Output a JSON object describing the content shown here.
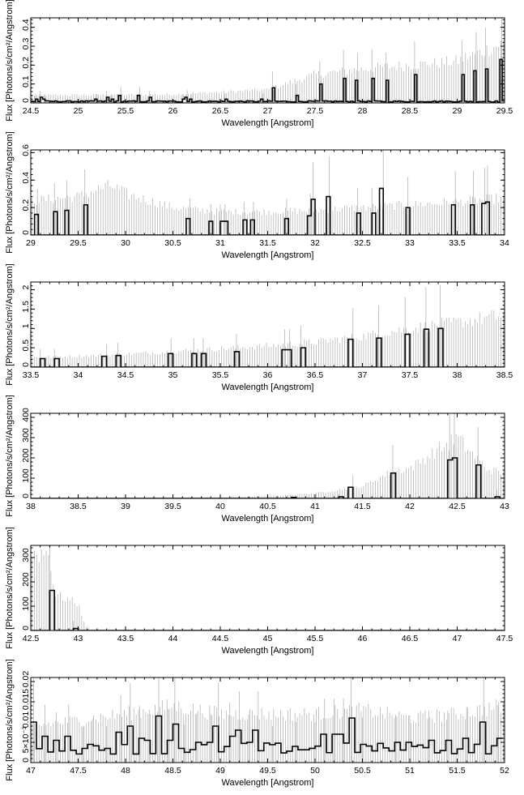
{
  "chart_data": [
    {
      "type": "histogram-step",
      "xlabel": "Wavelength [Angstrom]",
      "ylabel": "Flux [Photons/s/cm²/Angstrom]",
      "xlim": [
        24.5,
        29.5
      ],
      "ylim": [
        0,
        0.45
      ],
      "xticks": [
        24.5,
        25,
        25.5,
        26,
        26.5,
        27,
        27.5,
        28,
        28.5,
        29,
        29.5
      ],
      "xtick_labels": [
        "24.5",
        "25",
        "25.5",
        "26",
        "26.5",
        "27",
        "27.5",
        "28",
        "28.5",
        "29",
        "29.5"
      ],
      "yticks": [
        0,
        0.1,
        0.2,
        0.3,
        0.4
      ],
      "ytick_labels": [
        "0",
        "0.1",
        "0.2",
        "0.3",
        "0.4"
      ],
      "binwidth": 0.025,
      "envelope": [
        [
          24.5,
          0.04
        ],
        [
          26.0,
          0.045
        ],
        [
          27.0,
          0.07
        ],
        [
          27.5,
          0.15
        ],
        [
          28.0,
          0.18
        ],
        [
          28.5,
          0.2
        ],
        [
          29.0,
          0.22
        ],
        [
          29.5,
          0.32
        ]
      ],
      "peaks": [
        [
          24.55,
          0.02
        ],
        [
          24.6,
          0.03
        ],
        [
          24.65,
          0.02
        ],
        [
          25.2,
          0.02
        ],
        [
          25.3,
          0.03
        ],
        [
          25.35,
          0.02
        ],
        [
          25.45,
          0.04
        ],
        [
          25.65,
          0.04
        ],
        [
          25.75,
          0.03
        ],
        [
          26.1,
          0.02
        ],
        [
          26.15,
          0.03
        ],
        [
          26.2,
          0.02
        ],
        [
          26.55,
          0.02
        ],
        [
          26.95,
          0.02
        ],
        [
          27.05,
          0.08
        ],
        [
          27.3,
          0.04
        ],
        [
          27.55,
          0.1
        ],
        [
          27.8,
          0.13
        ],
        [
          27.95,
          0.12
        ],
        [
          28.1,
          0.13
        ],
        [
          28.25,
          0.12
        ],
        [
          28.55,
          0.15
        ],
        [
          29.05,
          0.15
        ],
        [
          29.2,
          0.17
        ],
        [
          29.3,
          0.18
        ],
        [
          29.47,
          0.23
        ]
      ],
      "baseline": 0.008
    },
    {
      "type": "histogram-step",
      "xlabel": "Wavelength [Angstrom]",
      "ylabel": "Flux [Photons/s/cm²/Angstrom]",
      "xlim": [
        29,
        34
      ],
      "ylim": [
        0,
        0.62
      ],
      "xticks": [
        29,
        29.5,
        30,
        30.5,
        31,
        31.5,
        32,
        32.5,
        33,
        33.5,
        34
      ],
      "xtick_labels": [
        "29",
        "29.5",
        "30",
        "30.5",
        "31",
        "31.5",
        "32",
        "32.5",
        "33",
        "33.5",
        "34"
      ],
      "yticks": [
        0,
        0.2,
        0.4,
        0.6
      ],
      "ytick_labels": [
        "0",
        "0.2",
        "0.4",
        "0.6"
      ],
      "binwidth": 0.04,
      "envelope": [
        [
          29.0,
          0.25
        ],
        [
          29.5,
          0.28
        ],
        [
          29.7,
          0.33
        ],
        [
          29.85,
          0.36
        ],
        [
          30.0,
          0.3
        ],
        [
          30.5,
          0.2
        ],
        [
          31.0,
          0.17
        ],
        [
          31.5,
          0.17
        ],
        [
          32.0,
          0.18
        ],
        [
          32.5,
          0.2
        ],
        [
          33.0,
          0.22
        ],
        [
          33.5,
          0.24
        ],
        [
          34.0,
          0.27
        ]
      ],
      "peaks": [
        [
          29.07,
          0.15
        ],
        [
          29.25,
          0.17
        ],
        [
          29.38,
          0.18
        ],
        [
          29.57,
          0.22
        ],
        [
          30.68,
          0.12
        ],
        [
          30.9,
          0.1
        ],
        [
          31.0,
          0.1
        ],
        [
          31.05,
          0.1
        ],
        [
          31.25,
          0.11
        ],
        [
          31.35,
          0.11
        ],
        [
          31.7,
          0.12
        ],
        [
          31.95,
          0.14
        ],
        [
          31.98,
          0.26
        ],
        [
          32.15,
          0.28
        ],
        [
          32.45,
          0.16
        ],
        [
          32.6,
          0.16
        ],
        [
          32.72,
          0.34
        ],
        [
          32.98,
          0.2
        ],
        [
          33.48,
          0.22
        ],
        [
          33.67,
          0.22
        ],
        [
          33.79,
          0.23
        ],
        [
          33.82,
          0.24
        ]
      ],
      "baseline": 0.0
    },
    {
      "type": "histogram-step",
      "xlabel": "Wavelength [Angstrom]",
      "ylabel": "Flux [Photons/s/cm²/Angstrom]",
      "xlim": [
        33.5,
        38.5
      ],
      "ylim": [
        0,
        2.2
      ],
      "xticks": [
        33.5,
        34,
        34.5,
        35,
        35.5,
        36,
        36.5,
        37,
        37.5,
        38,
        38.5
      ],
      "xtick_labels": [
        "33.5",
        "34",
        "34.5",
        "35",
        "35.5",
        "36",
        "36.5",
        "37",
        "37.5",
        "38",
        "38.5"
      ],
      "yticks": [
        0,
        0.5,
        1,
        1.5,
        2
      ],
      "ytick_labels": [
        "0",
        "0.5",
        "1",
        "1.5",
        "2"
      ],
      "binwidth": 0.05,
      "envelope": [
        [
          33.5,
          0.25
        ],
        [
          34.0,
          0.28
        ],
        [
          35.0,
          0.4
        ],
        [
          36.0,
          0.55
        ],
        [
          36.5,
          0.65
        ],
        [
          37.0,
          0.8
        ],
        [
          37.5,
          1.0
        ],
        [
          38.0,
          1.15
        ],
        [
          38.5,
          1.35
        ]
      ],
      "peaks": [
        [
          33.6,
          0.22
        ],
        [
          33.75,
          0.22
        ],
        [
          34.3,
          0.28
        ],
        [
          34.42,
          0.3
        ],
        [
          34.98,
          0.35
        ],
        [
          35.22,
          0.35
        ],
        [
          35.32,
          0.35
        ],
        [
          35.67,
          0.4
        ],
        [
          36.18,
          0.45
        ],
        [
          36.23,
          0.45
        ],
        [
          36.35,
          0.5
        ],
        [
          36.9,
          0.72
        ],
        [
          37.17,
          0.75
        ],
        [
          37.45,
          0.85
        ],
        [
          37.67,
          0.98
        ],
        [
          37.82,
          1.0
        ]
      ],
      "baseline": 0.0
    },
    {
      "type": "histogram-step",
      "xlabel": "Wavelength [Angstrom]",
      "ylabel": "Flux [Photons/s/cm²/Angstrom]",
      "xlim": [
        38,
        43
      ],
      "ylim": [
        0,
        420
      ],
      "xticks": [
        38,
        38.5,
        39,
        39.5,
        40,
        40.5,
        41,
        41.5,
        42,
        42.5,
        43
      ],
      "xtick_labels": [
        "38",
        "38.5",
        "39",
        "39.5",
        "40",
        "40.5",
        "41",
        "41.5",
        "42",
        "42.5",
        "43"
      ],
      "yticks": [
        0,
        100,
        200,
        300,
        400
      ],
      "ytick_labels": [
        "0",
        "100",
        "200",
        "300",
        "400"
      ],
      "binwidth": 0.05,
      "envelope": [
        [
          38.0,
          3
        ],
        [
          40.0,
          5
        ],
        [
          40.5,
          12
        ],
        [
          41.0,
          25
        ],
        [
          41.5,
          60
        ],
        [
          41.8,
          130
        ],
        [
          42.0,
          150
        ],
        [
          42.5,
          300
        ],
        [
          42.8,
          150
        ],
        [
          43.0,
          120
        ]
      ],
      "peaks": [
        [
          40.75,
          5
        ],
        [
          41.25,
          8
        ],
        [
          41.4,
          55
        ],
        [
          41.82,
          125
        ],
        [
          42.42,
          190
        ],
        [
          42.47,
          200
        ],
        [
          42.72,
          165
        ],
        [
          42.92,
          8
        ]
      ],
      "baseline": 0.0
    },
    {
      "type": "histogram-step",
      "xlabel": "Wavelength [Angstrom]",
      "ylabel": "Flux [Photons/s/cm²/Angstrom]",
      "xlim": [
        42.5,
        47.5
      ],
      "ylim": [
        0,
        350
      ],
      "xticks": [
        42.5,
        43,
        43.5,
        44,
        44.5,
        45,
        45.5,
        46,
        46.5,
        47,
        47.5
      ],
      "xtick_labels": [
        "42.5",
        "43",
        "43.5",
        "44",
        "44.5",
        "45",
        "45.5",
        "46",
        "46.5",
        "47",
        "47.5"
      ],
      "yticks": [
        0,
        100,
        200,
        300
      ],
      "ytick_labels": [
        "0",
        "100",
        "200",
        "300"
      ],
      "binwidth": 0.05,
      "envelope": [
        [
          42.5,
          320
        ],
        [
          42.7,
          320
        ],
        [
          42.75,
          150
        ],
        [
          43.0,
          110
        ],
        [
          43.1,
          0
        ]
      ],
      "peaks": [
        [
          42.7,
          165
        ],
        [
          42.95,
          8
        ]
      ],
      "baseline": 0.0
    },
    {
      "type": "histogram-step",
      "xlabel": "Wavelength [Angstrom]",
      "ylabel": "Flux [Photons/s/cm²/Angstrom]",
      "xlim": [
        47,
        52
      ],
      "ylim": [
        0,
        0.021
      ],
      "xticks": [
        47,
        47.5,
        48,
        48.5,
        49,
        49.5,
        50,
        50.5,
        51,
        51.5,
        52
      ],
      "xtick_labels": [
        "47",
        "47.5",
        "48",
        "48.5",
        "49",
        "49.5",
        "50",
        "50.5",
        "51",
        "51.5",
        "52"
      ],
      "yticks": [
        0,
        0.005,
        0.01,
        0.015,
        0.02
      ],
      "ytick_labels": [
        "0",
        "5×10⁻³",
        "0.01",
        "0.015",
        "0.02"
      ],
      "binwidth": 0.06,
      "envelope": [
        [
          47.0,
          0.009
        ],
        [
          48.0,
          0.012
        ],
        [
          48.5,
          0.014
        ],
        [
          49.0,
          0.012
        ],
        [
          50.0,
          0.012
        ],
        [
          50.5,
          0.013
        ],
        [
          51.0,
          0.011
        ],
        [
          51.5,
          0.012
        ],
        [
          52.0,
          0.014
        ]
      ],
      "peaks": [
        [
          47.03,
          0.01
        ],
        [
          47.15,
          0.0065
        ],
        [
          47.27,
          0.0055
        ],
        [
          47.4,
          0.0065
        ],
        [
          47.55,
          0.0035
        ],
        [
          47.65,
          0.0045
        ],
        [
          47.8,
          0.0035
        ],
        [
          47.95,
          0.0075
        ],
        [
          48.05,
          0.009
        ],
        [
          48.15,
          0.006
        ],
        [
          48.25,
          0.0055
        ],
        [
          48.35,
          0.0115
        ],
        [
          48.45,
          0.0055
        ],
        [
          48.52,
          0.0095
        ],
        [
          48.62,
          0.0035
        ],
        [
          48.75,
          0.005
        ],
        [
          48.9,
          0.005
        ],
        [
          48.98,
          0.009
        ],
        [
          49.1,
          0.0065
        ],
        [
          49.2,
          0.008
        ],
        [
          49.3,
          0.005
        ],
        [
          49.4,
          0.008
        ],
        [
          49.55,
          0.0035
        ],
        [
          49.8,
          0.004
        ],
        [
          50.0,
          0.004
        ],
        [
          50.1,
          0.007
        ],
        [
          50.2,
          0.007
        ],
        [
          50.3,
          0.007
        ],
        [
          50.38,
          0.011
        ],
        [
          50.5,
          0.0045
        ],
        [
          50.85,
          0.005
        ],
        [
          51.0,
          0.005
        ],
        [
          51.2,
          0.0055
        ],
        [
          51.4,
          0.0055
        ],
        [
          51.6,
          0.006
        ],
        [
          51.78,
          0.01
        ],
        [
          51.93,
          0.006
        ]
      ],
      "baseline": 0.0035
    }
  ]
}
